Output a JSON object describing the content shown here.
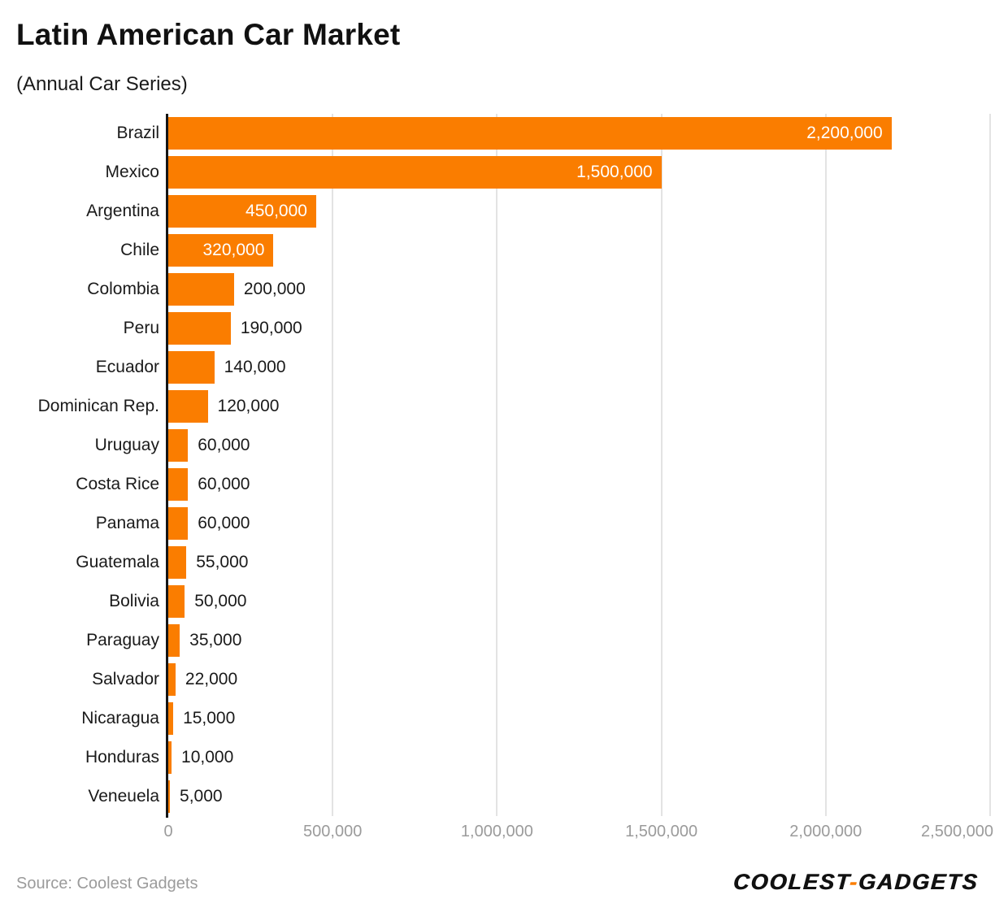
{
  "header": {
    "title": "Latin American Car Market",
    "subtitle": "(Annual Car Series)"
  },
  "footer": {
    "source": "Source: Coolest Gadgets",
    "logo_first": "coolest",
    "logo_hyphen": "-",
    "logo_second": "gadgets"
  },
  "colors": {
    "bar": "#fa7d00",
    "value_label_inside": "#ffffff",
    "value_label_outside": "#1a1a1a",
    "category_label": "#1a1a1a",
    "tick_label": "#9b9b9b",
    "gridline": "#e3e3e3",
    "axis_line": "#151515",
    "background": "#ffffff"
  },
  "chart_data": {
    "type": "bar",
    "orientation": "horizontal",
    "title": "Latin American Car Market",
    "subtitle": "(Annual Car Series)",
    "xlabel": "",
    "ylabel": "",
    "grid": true,
    "legend": false,
    "xlim": [
      0,
      2500000
    ],
    "categories": [
      "Brazil",
      "Mexico",
      "Argentina",
      "Chile",
      "Colombia",
      "Peru",
      "Ecuador",
      "Dominican Rep.",
      "Uruguay",
      "Costa Rice",
      "Panama",
      "Guatemala",
      "Bolivia",
      "Paraguay",
      "Salvador",
      "Nicaragua",
      "Honduras",
      "Veneuela"
    ],
    "values": [
      2200000,
      1500000,
      450000,
      320000,
      200000,
      190000,
      140000,
      120000,
      60000,
      60000,
      60000,
      55000,
      50000,
      35000,
      22000,
      15000,
      10000,
      5000
    ],
    "value_labels": [
      "2,200,000",
      "1,500,000",
      "450,000",
      "320,000",
      "200,000",
      "190,000",
      "140,000",
      "120,000",
      "60,000",
      "60,000",
      "60,000",
      "55,000",
      "50,000",
      "35,000",
      "22,000",
      "15,000",
      "10,000",
      "5,000"
    ],
    "x_ticks": [
      {
        "value": 0,
        "label": "0"
      },
      {
        "value": 500000,
        "label": "500,000"
      },
      {
        "value": 1000000,
        "label": "1,000,000"
      },
      {
        "value": 1500000,
        "label": "1,500,000"
      },
      {
        "value": 2000000,
        "label": "2,000,000"
      },
      {
        "value": 2500000,
        "label": "2,500,000"
      }
    ]
  }
}
